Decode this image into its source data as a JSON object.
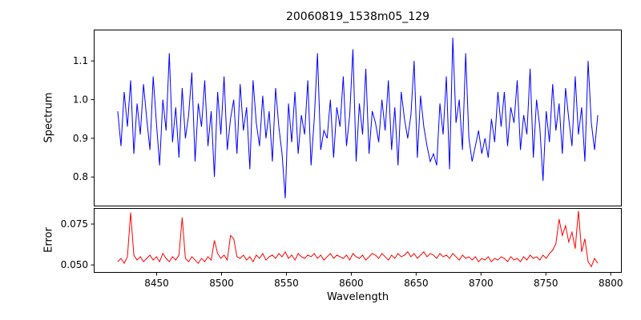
{
  "figure": {
    "title": "20060819_1538m05_129"
  },
  "chart_data": [
    {
      "type": "line",
      "name": "spectrum",
      "title": "20060819_1538m05_129",
      "ylabel": "Spectrum",
      "color": "#0000ff",
      "xlim": [
        8401.5,
        8808.5
      ],
      "ylim": [
        0.724,
        1.181
      ],
      "x_start": 8420,
      "x_end": 8790,
      "yticks": [
        0.8,
        0.9,
        1.0,
        1.1
      ],
      "ytick_labels": [
        "0.8",
        "0.9",
        "1.0",
        "1.1"
      ],
      "values": [
        0.97,
        0.88,
        1.02,
        0.93,
        1.05,
        0.86,
        0.99,
        0.91,
        1.04,
        0.95,
        0.87,
        1.06,
        0.94,
        0.83,
        1.0,
        0.92,
        1.12,
        0.89,
        0.98,
        0.85,
        1.03,
        0.9,
        0.96,
        1.07,
        0.84,
        0.99,
        0.93,
        1.05,
        0.88,
        0.97,
        0.8,
        1.02,
        0.91,
        1.06,
        0.87,
        0.95,
        1.0,
        0.86,
        1.04,
        0.92,
        0.98,
        0.82,
        1.05,
        0.94,
        0.88,
        1.01,
        0.9,
        0.97,
        0.84,
        1.03,
        0.93,
        0.86,
        0.745,
        0.99,
        0.89,
        1.02,
        0.86,
        0.96,
        0.91,
        1.05,
        0.83,
        0.95,
        1.12,
        0.87,
        0.92,
        0.9,
        1.0,
        0.85,
        0.98,
        0.93,
        1.06,
        0.88,
        0.96,
        1.13,
        0.84,
        0.99,
        0.91,
        1.08,
        0.86,
        0.97,
        0.94,
        0.89,
        1.0,
        0.92,
        1.05,
        0.87,
        0.98,
        0.83,
        1.02,
        0.95,
        0.9,
        0.96,
        1.1,
        0.85,
        1.01,
        0.93,
        0.88,
        0.84,
        0.86,
        0.83,
        0.99,
        0.91,
        1.06,
        0.82,
        1.16,
        0.94,
        1.0,
        0.87,
        1.12,
        0.9,
        0.84,
        0.88,
        0.92,
        0.86,
        0.9,
        0.85,
        0.95,
        0.89,
        1.02,
        0.93,
        1.02,
        0.88,
        0.98,
        0.94,
        1.05,
        0.87,
        0.96,
        0.91,
        1.08,
        0.85,
        1.0,
        0.93,
        0.79,
        0.97,
        0.89,
        1.04,
        0.92,
        0.99,
        0.86,
        1.03,
        0.95,
        0.88,
        1.06,
        0.91,
        0.98,
        0.84,
        1.1,
        0.94,
        0.87,
        0.96
      ]
    },
    {
      "type": "line",
      "name": "error",
      "ylabel": "Error",
      "xlabel": "Wavelength",
      "color": "#ff0000",
      "xlim": [
        8401.5,
        8808.5
      ],
      "ylim": [
        0.0452,
        0.0848
      ],
      "x_start": 8420,
      "x_end": 8790,
      "yticks": [
        0.05,
        0.075
      ],
      "ytick_labels": [
        "0.050",
        "0.075"
      ],
      "xticks": [
        8450,
        8500,
        8550,
        8600,
        8650,
        8700,
        8750,
        8800
      ],
      "xtick_labels": [
        "8450",
        "8500",
        "8550",
        "8600",
        "8650",
        "8700",
        "8750",
        "8800"
      ],
      "values": [
        0.052,
        0.054,
        0.051,
        0.055,
        0.082,
        0.056,
        0.053,
        0.055,
        0.052,
        0.054,
        0.056,
        0.053,
        0.055,
        0.052,
        0.057,
        0.054,
        0.052,
        0.055,
        0.053,
        0.056,
        0.079,
        0.054,
        0.052,
        0.055,
        0.053,
        0.051,
        0.054,
        0.052,
        0.055,
        0.053,
        0.065,
        0.057,
        0.054,
        0.056,
        0.053,
        0.068,
        0.066,
        0.055,
        0.054,
        0.056,
        0.053,
        0.055,
        0.052,
        0.056,
        0.054,
        0.057,
        0.053,
        0.055,
        0.056,
        0.054,
        0.057,
        0.055,
        0.058,
        0.054,
        0.056,
        0.053,
        0.057,
        0.055,
        0.054,
        0.056,
        0.055,
        0.057,
        0.054,
        0.056,
        0.053,
        0.055,
        0.057,
        0.054,
        0.056,
        0.055,
        0.054,
        0.056,
        0.053,
        0.057,
        0.055,
        0.054,
        0.056,
        0.053,
        0.055,
        0.057,
        0.056,
        0.054,
        0.057,
        0.055,
        0.053,
        0.056,
        0.054,
        0.057,
        0.055,
        0.056,
        0.058,
        0.055,
        0.057,
        0.054,
        0.056,
        0.058,
        0.055,
        0.057,
        0.056,
        0.054,
        0.057,
        0.055,
        0.056,
        0.054,
        0.057,
        0.055,
        0.053,
        0.056,
        0.054,
        0.055,
        0.053,
        0.055,
        0.052,
        0.054,
        0.053,
        0.055,
        0.052,
        0.054,
        0.053,
        0.055,
        0.054,
        0.052,
        0.055,
        0.053,
        0.054,
        0.052,
        0.055,
        0.053,
        0.056,
        0.054,
        0.055,
        0.053,
        0.056,
        0.054,
        0.057,
        0.059,
        0.063,
        0.078,
        0.068,
        0.074,
        0.064,
        0.07,
        0.06,
        0.083,
        0.058,
        0.066,
        0.052,
        0.049,
        0.054,
        0.051
      ]
    }
  ]
}
